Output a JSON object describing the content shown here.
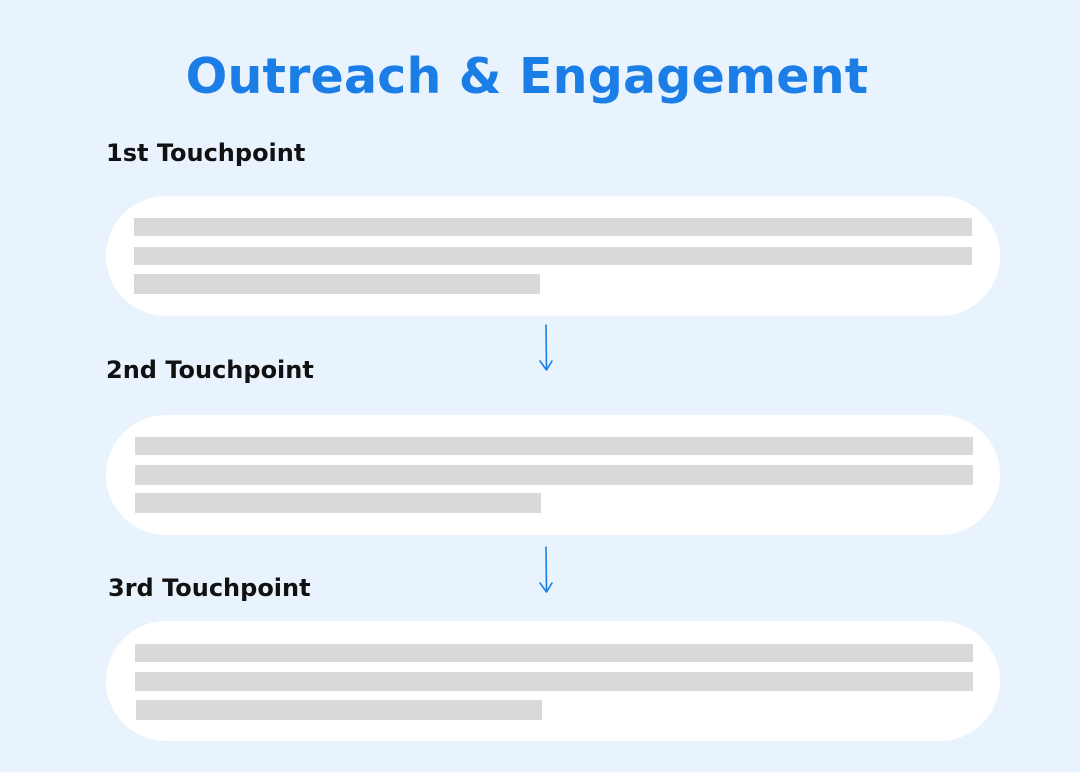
{
  "title": "Outreach & Engagement",
  "colors": {
    "background": "#e9f3fe",
    "title": "#1b7ee6",
    "label": "#111111",
    "card": "#ffffff",
    "placeholder": "#d9d9d9",
    "arrow": "#1b7ee6"
  },
  "steps": [
    {
      "label": "1st Touchpoint"
    },
    {
      "label": "2nd Touchpoint"
    },
    {
      "label": "3rd Touchpoint"
    }
  ],
  "connector_icon": "arrow-down-icon"
}
